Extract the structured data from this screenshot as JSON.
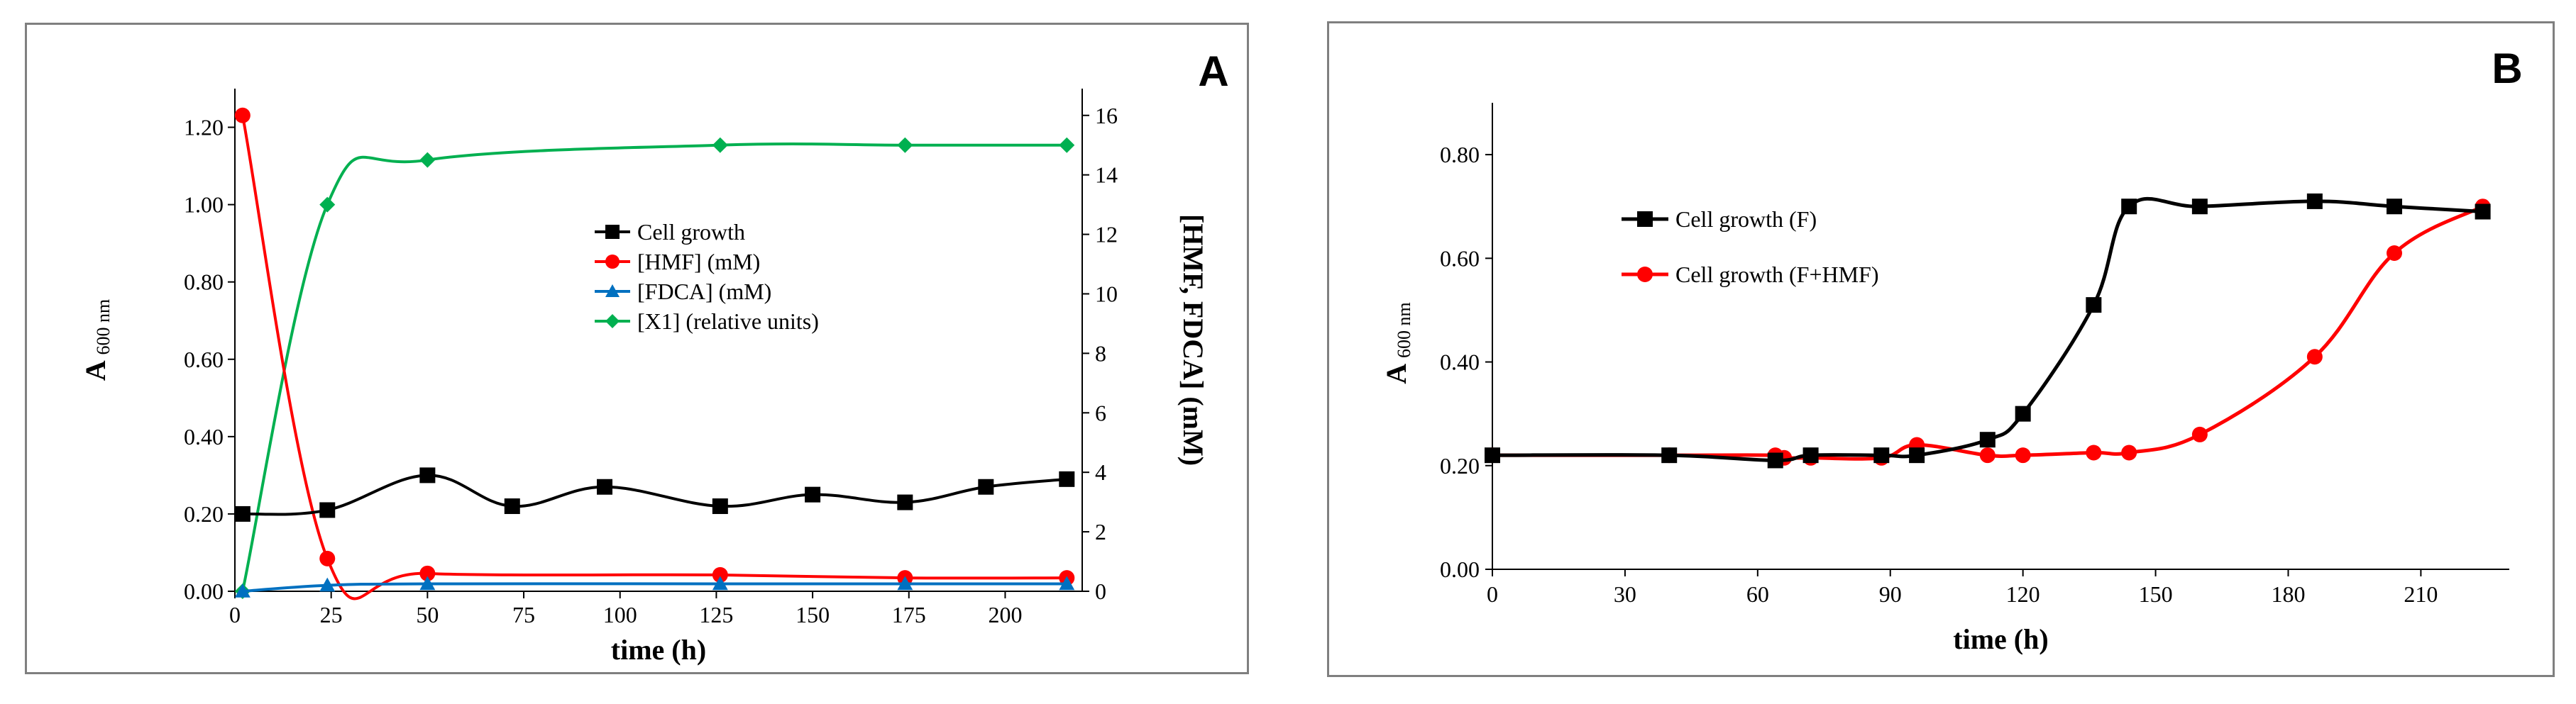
{
  "chart_data": [
    {
      "panel_label": "A",
      "type": "line",
      "xlabel": "time  (h)",
      "ylabel": "A",
      "ylabel_sub": "600 nm",
      "y2label": "[HMF, FDCA] (mM)",
      "xlim": [
        0,
        220
      ],
      "ylim": [
        0,
        1.3
      ],
      "y2lim": [
        0,
        16.9
      ],
      "x_ticks": [
        "0",
        "25",
        "50",
        "75",
        "100",
        "125",
        "150",
        "175",
        "200"
      ],
      "y_ticks": [
        "0.00",
        "0.20",
        "0.40",
        "0.60",
        "0.80",
        "1.00",
        "1.20"
      ],
      "y2_ticks": [
        "0",
        "2",
        "4",
        "6",
        "8",
        "10",
        "12",
        "14",
        "16"
      ],
      "legend_position": "center",
      "series": [
        {
          "name": "Cell growth",
          "axis": "left",
          "color": "#000000",
          "marker": "square",
          "x": [
            2,
            24,
            50,
            72,
            96,
            126,
            150,
            174,
            195,
            216
          ],
          "y": [
            0.2,
            0.21,
            0.3,
            0.22,
            0.27,
            0.22,
            0.25,
            0.23,
            0.27,
            0.29
          ]
        },
        {
          "name": "[HMF] (mM)",
          "axis": "right",
          "color": "#ff0000",
          "marker": "circle",
          "x": [
            2,
            24,
            50,
            126,
            174,
            216
          ],
          "y": [
            16.0,
            1.1,
            0.6,
            0.55,
            0.45,
            0.45
          ]
        },
        {
          "name": "[FDCA] (mM)",
          "axis": "right",
          "color": "#0070c0",
          "marker": "triangle",
          "x": [
            2,
            24,
            50,
            126,
            174,
            216
          ],
          "y": [
            0.0,
            0.2,
            0.25,
            0.25,
            0.25,
            0.25
          ]
        },
        {
          "name": "[X1] (relative units)",
          "axis": "right",
          "color": "#00b050",
          "marker": "diamond",
          "x": [
            2,
            24,
            50,
            126,
            174,
            216
          ],
          "y": [
            0.0,
            13.0,
            14.5,
            15.0,
            15.0,
            15.0
          ]
        }
      ]
    },
    {
      "panel_label": "B",
      "type": "line",
      "xlabel": "time (h)",
      "ylabel": "A",
      "ylabel_sub": "600 nm",
      "xlim": [
        0,
        230
      ],
      "ylim": [
        0,
        0.9
      ],
      "x_ticks": [
        "0",
        "30",
        "60",
        "90",
        "120",
        "150",
        "180",
        "210"
      ],
      "y_ticks": [
        "0.00",
        "0.20",
        "0.40",
        "0.60",
        "0.80"
      ],
      "legend_position": "top-left",
      "series": [
        {
          "name": "Cell growth (F)",
          "color": "#000000",
          "marker": "square",
          "x": [
            0,
            40,
            64,
            72,
            88,
            96,
            112,
            120,
            136,
            144,
            160,
            186,
            204,
            224
          ],
          "y": [
            0.22,
            0.22,
            0.21,
            0.22,
            0.22,
            0.22,
            0.25,
            0.3,
            0.51,
            0.7,
            0.7,
            0.71,
            0.7,
            0.69
          ]
        },
        {
          "name": "Cell growth (F+HMF)",
          "color": "#ff0000",
          "marker": "circle",
          "x": [
            0,
            40,
            64,
            66,
            72,
            88,
            96,
            112,
            120,
            136,
            144,
            160,
            186,
            204,
            224
          ],
          "y": [
            0.22,
            0.22,
            0.22,
            0.215,
            0.215,
            0.215,
            0.24,
            0.22,
            0.22,
            0.225,
            0.225,
            0.26,
            0.41,
            0.61,
            0.7
          ]
        }
      ]
    }
  ]
}
